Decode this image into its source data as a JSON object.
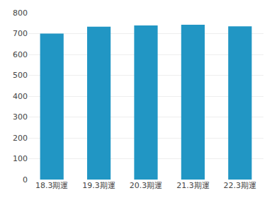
{
  "chart_data": {
    "type": "bar",
    "categories": [
      "18.3期運",
      "19.3期運",
      "20.3期運",
      "21.3期運",
      "22.3期運"
    ],
    "values": [
      700,
      733,
      739,
      742,
      735
    ],
    "color": "#2196c4",
    "ylim": [
      0,
      800
    ],
    "yticks": [
      0,
      100,
      200,
      300,
      400,
      500,
      600,
      700,
      800
    ],
    "grid": true
  }
}
